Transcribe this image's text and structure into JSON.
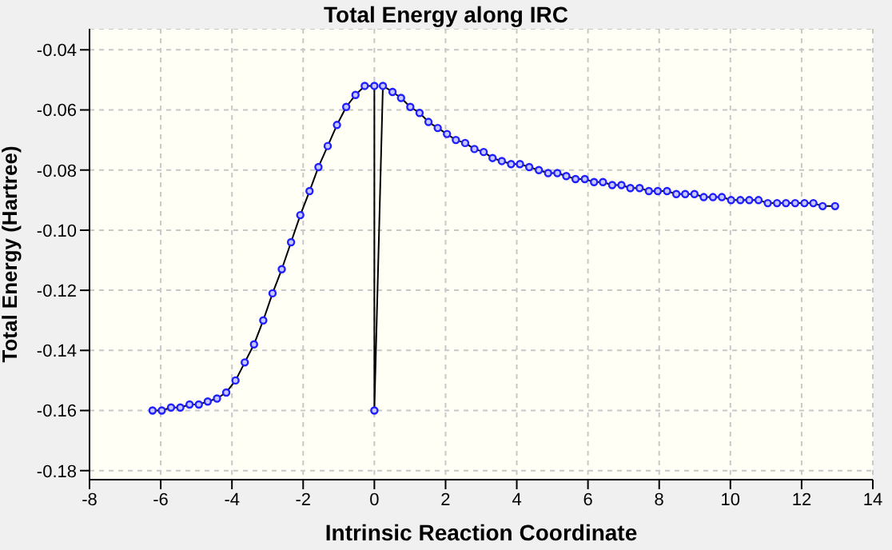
{
  "chart_data": {
    "type": "line",
    "title": "Total Energy along IRC",
    "xlabel": "Intrinsic Reaction Coordinate",
    "ylabel": "Total Energy (Hartree)",
    "xlim": [
      -8,
      14
    ],
    "xticks": [
      -8,
      -6,
      -4,
      -2,
      0,
      2,
      4,
      6,
      8,
      10,
      12,
      14
    ],
    "ylim": [
      -0.183,
      -0.033
    ],
    "yticks": [
      -0.18,
      -0.16,
      -0.14,
      -0.12,
      {
        "value": -0.1,
        "label": "-0.10"
      },
      -0.08,
      -0.06,
      -0.04
    ],
    "grid": true,
    "marker": "circle",
    "line_style": "solid",
    "legend": false,
    "series": [
      {
        "color": "#2020ff",
        "x": [
          -6.23,
          -5.97,
          -5.71,
          -5.45,
          -5.19,
          -4.93,
          -4.68,
          -4.42,
          -4.16,
          -3.9,
          -3.64,
          -3.38,
          -3.12,
          -2.86,
          -2.6,
          -2.34,
          -2.08,
          -1.82,
          -1.57,
          -1.31,
          -1.05,
          -0.79,
          -0.53,
          -0.27,
          0,
          0,
          0.24,
          0.51,
          0.75,
          1.01,
          1.27,
          1.52,
          1.78,
          2.04,
          2.29,
          2.55,
          2.81,
          3.07,
          3.32,
          3.58,
          3.84,
          4.09,
          4.35,
          4.62,
          4.88,
          5.14,
          5.39,
          5.65,
          5.91,
          6.17,
          6.42,
          6.68,
          6.94,
          7.19,
          7.45,
          7.71,
          7.96,
          8.22,
          8.48,
          8.73,
          8.99,
          9.25,
          9.51,
          9.76,
          10.02,
          10.28,
          10.53,
          10.79,
          11.05,
          11.31,
          11.56,
          11.82,
          12.08,
          12.33,
          12.59,
          12.94
        ],
        "values": [
          -0.16,
          -0.16,
          -0.159,
          -0.159,
          -0.158,
          -0.158,
          -0.157,
          -0.156,
          -0.154,
          -0.15,
          -0.144,
          -0.138,
          -0.13,
          -0.121,
          -0.113,
          -0.104,
          -0.095,
          -0.087,
          -0.079,
          -0.072,
          -0.065,
          -0.059,
          -0.055,
          -0.052,
          -0.052,
          -0.16,
          -0.052,
          -0.054,
          -0.056,
          -0.059,
          -0.061,
          -0.064,
          -0.066,
          -0.068,
          -0.07,
          -0.071,
          -0.073,
          -0.074,
          -0.076,
          -0.077,
          -0.078,
          -0.078,
          -0.079,
          -0.08,
          -0.081,
          -0.081,
          -0.082,
          -0.083,
          -0.083,
          -0.084,
          -0.084,
          -0.085,
          -0.085,
          -0.086,
          -0.086,
          -0.087,
          -0.087,
          -0.087,
          -0.088,
          -0.088,
          -0.088,
          -0.089,
          -0.089,
          -0.089,
          -0.09,
          -0.09,
          -0.09,
          -0.09,
          -0.091,
          -0.091,
          -0.091,
          -0.091,
          -0.091,
          -0.091,
          -0.092,
          -0.092
        ]
      }
    ]
  }
}
